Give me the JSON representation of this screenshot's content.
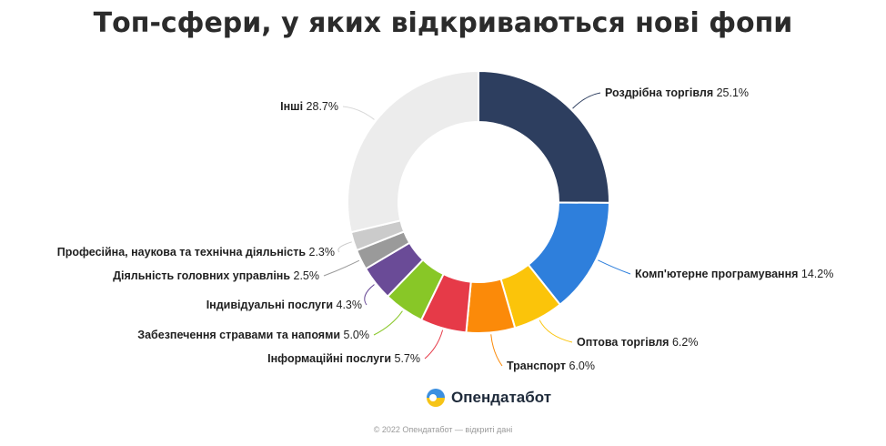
{
  "title": "Топ-сфери, у яких відкриваються нові фопи",
  "brand": {
    "name": "Опендатабот",
    "icon": "opendatabot-logo-icon"
  },
  "footer": "© 2022 Опендатабот — відкриті дані",
  "chart_data": {
    "type": "pie",
    "donut": true,
    "slices": [
      {
        "name": "Роздрібна торгівля",
        "value": 25.1,
        "value_label": "25.1%",
        "color": "#2d3e5f"
      },
      {
        "name": "Комп'ютерне програмування",
        "value": 14.2,
        "value_label": "14.2%",
        "color": "#2e7fdc"
      },
      {
        "name": "Оптова торгівля",
        "value": 6.2,
        "value_label": "6.2%",
        "color": "#fbc40a"
      },
      {
        "name": "Транспорт",
        "value": 6.0,
        "value_label": "6.0%",
        "color": "#fb8a09"
      },
      {
        "name": "Інформаційні послуги",
        "value": 5.7,
        "value_label": "5.7%",
        "color": "#e63a48"
      },
      {
        "name": "Забезпечення стравами та напоями",
        "value": 5.0,
        "value_label": "5.0%",
        "color": "#88c727"
      },
      {
        "name": "Індивідуальні послуги",
        "value": 4.3,
        "value_label": "4.3%",
        "color": "#6a4b97"
      },
      {
        "name": "Діяльність головних управлінь",
        "value": 2.5,
        "value_label": "2.5%",
        "color": "#9a9a9a"
      },
      {
        "name": "Професійна, наукова та технічна діяльність",
        "value": 2.3,
        "value_label": "2.3%",
        "color": "#cbcbcb"
      },
      {
        "name": "Інші",
        "value": 28.7,
        "value_label": "28.7%",
        "color": "#ececec"
      }
    ]
  }
}
